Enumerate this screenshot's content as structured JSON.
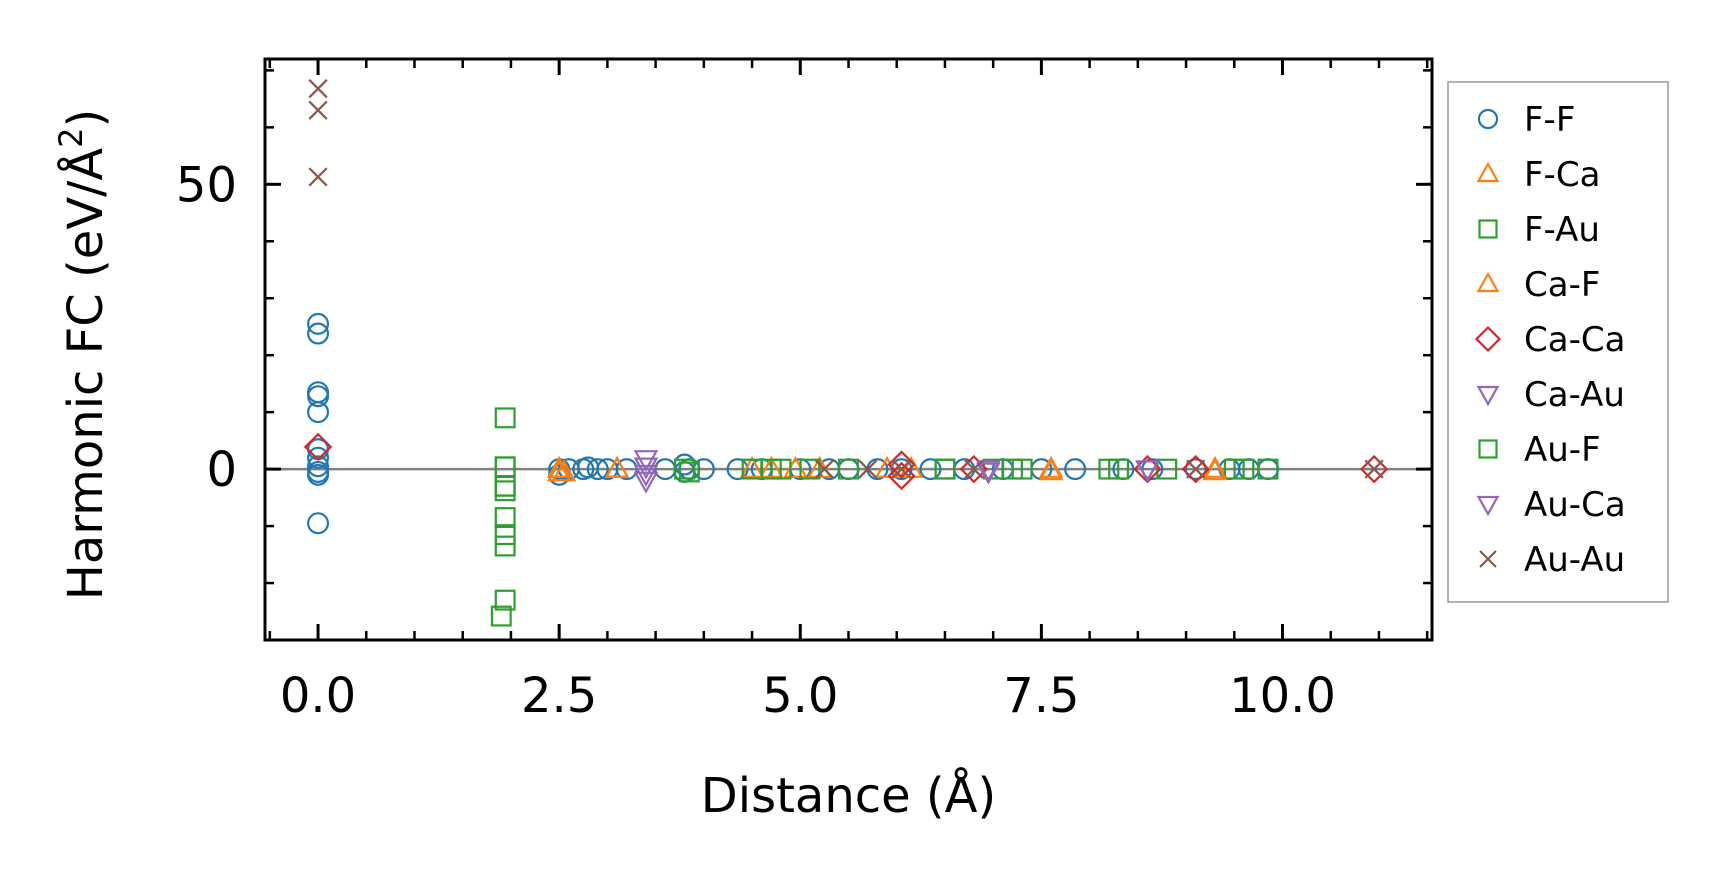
{
  "chart_data": {
    "type": "scatter",
    "xlabel": "Distance (Å)",
    "ylabel": {
      "main": "Harmonic FC (eV/Å",
      "sup": "2",
      "close": ")"
    },
    "xlim": [
      -0.55,
      11.55
    ],
    "ylim": [
      -30,
      72
    ],
    "xticks": [
      "0.0",
      "2.5",
      "5.0",
      "7.5",
      "10.0"
    ],
    "yticks": [
      "0",
      "50"
    ],
    "reference_line_y": 0,
    "legend_position": "right, outside plot",
    "series": [
      {
        "name": "F-F",
        "marker": "circle",
        "color": "#1f77b4",
        "points": [
          [
            0,
            25.5
          ],
          [
            0,
            23.8
          ],
          [
            0,
            13.5
          ],
          [
            0,
            12.8
          ],
          [
            0,
            10
          ],
          [
            0,
            3.5
          ],
          [
            0,
            2
          ],
          [
            0,
            0.5
          ],
          [
            0,
            -0.5
          ],
          [
            0,
            -1
          ],
          [
            0,
            -9.5
          ],
          [
            2.5,
            0
          ],
          [
            2.5,
            -1
          ],
          [
            2.6,
            0
          ],
          [
            2.75,
            0
          ],
          [
            2.8,
            0.3
          ],
          [
            2.9,
            0
          ],
          [
            3.0,
            0
          ],
          [
            3.2,
            0
          ],
          [
            3.6,
            0
          ],
          [
            3.8,
            0.8
          ],
          [
            3.8,
            -0.5
          ],
          [
            3.85,
            0
          ],
          [
            4.0,
            0
          ],
          [
            4.35,
            0
          ],
          [
            4.6,
            0
          ],
          [
            5.0,
            0
          ],
          [
            5.3,
            0
          ],
          [
            5.5,
            0
          ],
          [
            5.8,
            0
          ],
          [
            6.05,
            0
          ],
          [
            6.35,
            0
          ],
          [
            6.7,
            0
          ],
          [
            7.1,
            0
          ],
          [
            7.5,
            0
          ],
          [
            7.85,
            0
          ],
          [
            8.35,
            0
          ],
          [
            8.65,
            0
          ],
          [
            9.1,
            0
          ],
          [
            9.45,
            0
          ],
          [
            9.65,
            0
          ],
          [
            9.85,
            0
          ]
        ]
      },
      {
        "name": "F-Ca",
        "marker": "triangle-up",
        "color": "#ff7f0e",
        "points": [
          [
            2.5,
            0
          ],
          [
            2.55,
            -0.6
          ],
          [
            3.1,
            0
          ],
          [
            4.5,
            0
          ],
          [
            4.95,
            0
          ],
          [
            5.2,
            0
          ],
          [
            6.15,
            0
          ],
          [
            7.6,
            0
          ],
          [
            9.3,
            0
          ]
        ]
      },
      {
        "name": "F-Au",
        "marker": "square",
        "color": "#2ca02c",
        "points": [
          [
            1.94,
            9
          ],
          [
            1.94,
            -3
          ],
          [
            1.94,
            -3.8
          ],
          [
            1.94,
            -8.5
          ],
          [
            1.94,
            -11.5
          ],
          [
            1.94,
            -13.5
          ],
          [
            1.94,
            -23
          ],
          [
            1.9,
            -25.8
          ],
          [
            1.94,
            0.4
          ],
          [
            3.8,
            0
          ],
          [
            4.5,
            0
          ],
          [
            4.8,
            0
          ],
          [
            5.5,
            0
          ],
          [
            6.5,
            0
          ],
          [
            7.0,
            0
          ],
          [
            7.3,
            0
          ],
          [
            8.2,
            0
          ],
          [
            8.8,
            0
          ],
          [
            9.5,
            0
          ],
          [
            9.85,
            0
          ]
        ]
      },
      {
        "name": "Ca-F",
        "marker": "triangle-up",
        "color": "#ff7f0e",
        "points": [
          [
            2.5,
            -0.6
          ],
          [
            3.1,
            0
          ],
          [
            4.7,
            0
          ],
          [
            5.9,
            0
          ],
          [
            7.6,
            -0.4
          ],
          [
            9.3,
            -0.4
          ]
        ]
      },
      {
        "name": "Ca-Ca",
        "marker": "diamond",
        "color": "#d62728",
        "points": [
          [
            0,
            3.9
          ],
          [
            6.05,
            0.8
          ],
          [
            6.05,
            -1.2
          ],
          [
            6.8,
            0
          ],
          [
            8.6,
            0
          ],
          [
            9.1,
            0
          ],
          [
            10.95,
            0
          ]
        ]
      },
      {
        "name": "Ca-Au",
        "marker": "triangle-down",
        "color": "#9467bd",
        "points": [
          [
            3.4,
            1.8
          ],
          [
            3.4,
            0.5
          ],
          [
            3.4,
            -0.8
          ],
          [
            3.4,
            -2
          ],
          [
            6.95,
            0
          ],
          [
            8.6,
            0
          ]
        ]
      },
      {
        "name": "Au-F",
        "marker": "square",
        "color": "#2ca02c",
        "points": [
          [
            1.94,
            0.4
          ],
          [
            1.94,
            -3
          ],
          [
            3.85,
            -0.5
          ],
          [
            4.7,
            0
          ],
          [
            5.1,
            0
          ],
          [
            6.5,
            0
          ],
          [
            7.2,
            0
          ],
          [
            8.3,
            0
          ],
          [
            9.6,
            0
          ]
        ]
      },
      {
        "name": "Au-Ca",
        "marker": "triangle-down",
        "color": "#9467bd",
        "points": [
          [
            3.4,
            0.5
          ],
          [
            6.95,
            -0.4
          ],
          [
            8.6,
            0
          ]
        ]
      },
      {
        "name": "Au-Au",
        "marker": "x",
        "color": "#8c564b",
        "points": [
          [
            0,
            66.8
          ],
          [
            0,
            63
          ],
          [
            0,
            51.3
          ],
          [
            5.25,
            0
          ],
          [
            5.7,
            0
          ],
          [
            6.05,
            0
          ],
          [
            6.8,
            0
          ],
          [
            9.1,
            0
          ],
          [
            10.95,
            0
          ]
        ]
      }
    ]
  }
}
